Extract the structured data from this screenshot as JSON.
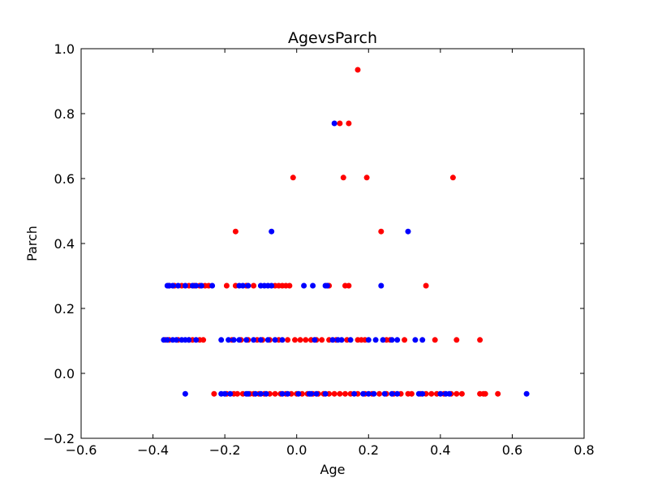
{
  "chart_data": {
    "type": "scatter",
    "title": "AgevsParch",
    "xlabel": "Age",
    "ylabel": "Parch",
    "xlim": [
      -0.6,
      0.8
    ],
    "ylim": [
      -0.2,
      1.0
    ],
    "xticks": [
      "−0.6",
      "−0.4",
      "−0.2",
      "0.0",
      "0.2",
      "0.4",
      "0.6",
      "0.8"
    ],
    "yticks": [
      "−0.2",
      "0.0",
      "0.2",
      "0.4",
      "0.6",
      "0.8",
      "1.0"
    ],
    "grid": false,
    "series": [
      {
        "color": "#ff0000",
        "points": [
          [
            0.17,
            0.935
          ],
          [
            0.12,
            0.77
          ],
          [
            0.145,
            0.77
          ],
          [
            -0.01,
            0.603
          ],
          [
            0.13,
            0.603
          ],
          [
            0.195,
            0.603
          ],
          [
            0.435,
            0.603
          ],
          [
            -0.17,
            0.437
          ],
          [
            0.235,
            0.437
          ],
          [
            -0.355,
            0.27
          ],
          [
            -0.34,
            0.27
          ],
          [
            -0.32,
            0.27
          ],
          [
            -0.3,
            0.27
          ],
          [
            -0.285,
            0.27
          ],
          [
            -0.27,
            0.27
          ],
          [
            -0.255,
            0.27
          ],
          [
            -0.245,
            0.27
          ],
          [
            -0.195,
            0.27
          ],
          [
            -0.17,
            0.27
          ],
          [
            -0.14,
            0.27
          ],
          [
            -0.12,
            0.27
          ],
          [
            -0.06,
            0.27
          ],
          [
            -0.05,
            0.27
          ],
          [
            -0.04,
            0.27
          ],
          [
            -0.03,
            0.27
          ],
          [
            -0.02,
            0.27
          ],
          [
            0.09,
            0.27
          ],
          [
            0.135,
            0.27
          ],
          [
            0.145,
            0.27
          ],
          [
            0.36,
            0.27
          ],
          [
            -0.365,
            0.103
          ],
          [
            -0.355,
            0.103
          ],
          [
            -0.33,
            0.103
          ],
          [
            -0.3,
            0.103
          ],
          [
            -0.29,
            0.103
          ],
          [
            -0.27,
            0.103
          ],
          [
            -0.26,
            0.103
          ],
          [
            -0.18,
            0.103
          ],
          [
            -0.155,
            0.103
          ],
          [
            -0.135,
            0.103
          ],
          [
            -0.11,
            0.103
          ],
          [
            -0.095,
            0.103
          ],
          [
            -0.075,
            0.103
          ],
          [
            -0.05,
            0.103
          ],
          [
            -0.025,
            0.103
          ],
          [
            -0.005,
            0.103
          ],
          [
            0.01,
            0.103
          ],
          [
            0.025,
            0.103
          ],
          [
            0.04,
            0.103
          ],
          [
            0.055,
            0.103
          ],
          [
            0.07,
            0.103
          ],
          [
            0.09,
            0.103
          ],
          [
            0.11,
            0.103
          ],
          [
            0.14,
            0.103
          ],
          [
            0.17,
            0.103
          ],
          [
            0.18,
            0.103
          ],
          [
            0.19,
            0.103
          ],
          [
            0.25,
            0.103
          ],
          [
            0.26,
            0.103
          ],
          [
            0.3,
            0.103
          ],
          [
            0.385,
            0.103
          ],
          [
            0.445,
            0.103
          ],
          [
            0.51,
            0.103
          ],
          [
            -0.23,
            -0.063
          ],
          [
            -0.195,
            -0.063
          ],
          [
            -0.175,
            -0.063
          ],
          [
            -0.165,
            -0.063
          ],
          [
            -0.15,
            -0.063
          ],
          [
            -0.13,
            -0.063
          ],
          [
            -0.12,
            -0.063
          ],
          [
            -0.105,
            -0.063
          ],
          [
            -0.09,
            -0.063
          ],
          [
            -0.075,
            -0.063
          ],
          [
            -0.06,
            -0.063
          ],
          [
            -0.045,
            -0.063
          ],
          [
            -0.03,
            -0.063
          ],
          [
            -0.015,
            -0.063
          ],
          [
            0.0,
            -0.063
          ],
          [
            0.015,
            -0.063
          ],
          [
            0.03,
            -0.063
          ],
          [
            0.045,
            -0.063
          ],
          [
            0.06,
            -0.063
          ],
          [
            0.075,
            -0.063
          ],
          [
            0.09,
            -0.063
          ],
          [
            0.105,
            -0.063
          ],
          [
            0.12,
            -0.063
          ],
          [
            0.135,
            -0.063
          ],
          [
            0.15,
            -0.063
          ],
          [
            0.17,
            -0.063
          ],
          [
            0.19,
            -0.063
          ],
          [
            0.21,
            -0.063
          ],
          [
            0.23,
            -0.063
          ],
          [
            0.25,
            -0.063
          ],
          [
            0.27,
            -0.063
          ],
          [
            0.29,
            -0.063
          ],
          [
            0.31,
            -0.063
          ],
          [
            0.32,
            -0.063
          ],
          [
            0.345,
            -0.063
          ],
          [
            0.36,
            -0.063
          ],
          [
            0.375,
            -0.063
          ],
          [
            0.39,
            -0.063
          ],
          [
            0.41,
            -0.063
          ],
          [
            0.43,
            -0.063
          ],
          [
            0.445,
            -0.063
          ],
          [
            0.46,
            -0.063
          ],
          [
            0.51,
            -0.063
          ],
          [
            0.52,
            -0.063
          ],
          [
            0.525,
            -0.063
          ],
          [
            0.56,
            -0.063
          ]
        ]
      },
      {
        "color": "#0000ff",
        "points": [
          [
            0.105,
            0.77
          ],
          [
            -0.07,
            0.437
          ],
          [
            0.31,
            0.437
          ],
          [
            -0.36,
            0.27
          ],
          [
            -0.355,
            0.27
          ],
          [
            -0.345,
            0.27
          ],
          [
            -0.33,
            0.27
          ],
          [
            -0.31,
            0.27
          ],
          [
            -0.29,
            0.27
          ],
          [
            -0.28,
            0.27
          ],
          [
            -0.265,
            0.27
          ],
          [
            -0.235,
            0.27
          ],
          [
            -0.16,
            0.27
          ],
          [
            -0.15,
            0.27
          ],
          [
            -0.135,
            0.27
          ],
          [
            -0.1,
            0.27
          ],
          [
            -0.09,
            0.27
          ],
          [
            -0.08,
            0.27
          ],
          [
            -0.07,
            0.27
          ],
          [
            0.02,
            0.27
          ],
          [
            0.045,
            0.27
          ],
          [
            0.08,
            0.27
          ],
          [
            0.085,
            0.27
          ],
          [
            0.235,
            0.27
          ],
          [
            -0.37,
            0.103
          ],
          [
            -0.36,
            0.103
          ],
          [
            -0.345,
            0.103
          ],
          [
            -0.335,
            0.103
          ],
          [
            -0.32,
            0.103
          ],
          [
            -0.31,
            0.103
          ],
          [
            -0.3,
            0.103
          ],
          [
            -0.28,
            0.103
          ],
          [
            -0.21,
            0.103
          ],
          [
            -0.19,
            0.103
          ],
          [
            -0.175,
            0.103
          ],
          [
            -0.16,
            0.103
          ],
          [
            -0.14,
            0.103
          ],
          [
            -0.12,
            0.103
          ],
          [
            -0.1,
            0.103
          ],
          [
            -0.08,
            0.103
          ],
          [
            -0.06,
            0.103
          ],
          [
            -0.04,
            0.103
          ],
          [
            0.05,
            0.103
          ],
          [
            0.1,
            0.103
          ],
          [
            0.115,
            0.103
          ],
          [
            0.125,
            0.103
          ],
          [
            0.15,
            0.103
          ],
          [
            0.2,
            0.103
          ],
          [
            0.22,
            0.103
          ],
          [
            0.24,
            0.103
          ],
          [
            0.265,
            0.103
          ],
          [
            0.28,
            0.103
          ],
          [
            0.33,
            0.103
          ],
          [
            0.35,
            0.103
          ],
          [
            -0.31,
            -0.063
          ],
          [
            -0.21,
            -0.063
          ],
          [
            -0.2,
            -0.063
          ],
          [
            -0.185,
            -0.063
          ],
          [
            -0.14,
            -0.063
          ],
          [
            -0.135,
            -0.063
          ],
          [
            -0.115,
            -0.063
          ],
          [
            -0.1,
            -0.063
          ],
          [
            -0.085,
            -0.063
          ],
          [
            -0.04,
            -0.063
          ],
          [
            -0.025,
            -0.063
          ],
          [
            0.005,
            -0.063
          ],
          [
            0.035,
            -0.063
          ],
          [
            0.04,
            -0.063
          ],
          [
            0.055,
            -0.063
          ],
          [
            0.08,
            -0.063
          ],
          [
            0.16,
            -0.063
          ],
          [
            0.185,
            -0.063
          ],
          [
            0.2,
            -0.063
          ],
          [
            0.215,
            -0.063
          ],
          [
            0.245,
            -0.063
          ],
          [
            0.265,
            -0.063
          ],
          [
            0.28,
            -0.063
          ],
          [
            0.34,
            -0.063
          ],
          [
            0.35,
            -0.063
          ],
          [
            0.4,
            -0.063
          ],
          [
            0.415,
            -0.063
          ],
          [
            0.425,
            -0.063
          ],
          [
            0.64,
            -0.063
          ]
        ]
      }
    ]
  }
}
